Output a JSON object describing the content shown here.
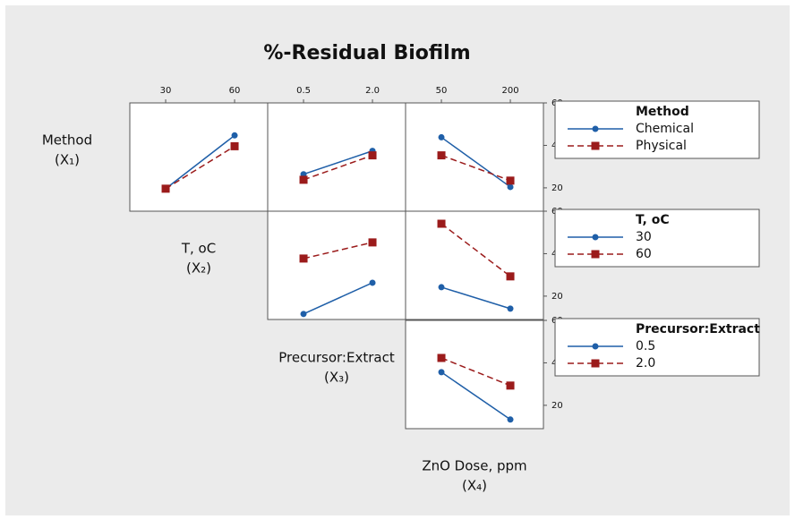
{
  "title": "%-Residual Biofilm",
  "factors": [
    {
      "name": "Method",
      "symbol": "(X₁)"
    },
    {
      "name": "T, oC",
      "symbol": "(X₂)"
    },
    {
      "name": "Precursor:Extract",
      "symbol": "(X₃)"
    },
    {
      "name": "ZnO Dose, ppm",
      "symbol": "(X₄)"
    }
  ],
  "chart_data": [
    {
      "type": "line",
      "categories": [
        "30",
        "60"
      ],
      "ylim": [
        9,
        60
      ],
      "series": [
        {
          "color": "#1f5fa8",
          "marker": "circle",
          "dashed": false,
          "values": [
            19.6,
            44.7
          ]
        },
        {
          "color": "#9b1b1b",
          "marker": "square",
          "dashed": true,
          "values": [
            19.6,
            39.6
          ]
        }
      ]
    },
    {
      "type": "line",
      "categories": [
        "0.5",
        "2.0"
      ],
      "ylim": [
        9,
        60
      ],
      "series": [
        {
          "color": "#1f5fa8",
          "marker": "circle",
          "dashed": false,
          "values": [
            26.4,
            37.4
          ]
        },
        {
          "color": "#9b1b1b",
          "marker": "square",
          "dashed": true,
          "values": [
            23.8,
            35.3
          ]
        }
      ]
    },
    {
      "type": "line",
      "categories": [
        "50",
        "200"
      ],
      "ylim": [
        9,
        60
      ],
      "yticks": [
        20,
        40,
        60
      ],
      "legend_title": "Method",
      "series": [
        {
          "name": "Chemical",
          "color": "#1f5fa8",
          "marker": "circle",
          "dashed": false,
          "values": [
            43.8,
            20.4
          ]
        },
        {
          "name": "Physical",
          "color": "#9b1b1b",
          "marker": "square",
          "dashed": true,
          "values": [
            35.3,
            23.4
          ]
        }
      ]
    },
    {
      "type": "line",
      "categories": [
        "0.5",
        "2.0"
      ],
      "ylim": [
        9,
        60
      ],
      "series": [
        {
          "color": "#1f5fa8",
          "marker": "circle",
          "dashed": false,
          "values": [
            11.6,
            26.3
          ]
        },
        {
          "color": "#9b1b1b",
          "marker": "square",
          "dashed": true,
          "values": [
            37.7,
            45.3
          ]
        }
      ]
    },
    {
      "type": "line",
      "categories": [
        "50",
        "200"
      ],
      "ylim": [
        9,
        60
      ],
      "yticks": [
        20,
        40,
        60
      ],
      "legend_title": "T, oC",
      "series": [
        {
          "name": "30",
          "color": "#1f5fa8",
          "marker": "circle",
          "dashed": false,
          "values": [
            24.2,
            14.1
          ]
        },
        {
          "name": "60",
          "color": "#9b1b1b",
          "marker": "square",
          "dashed": true,
          "values": [
            54.1,
            29.3
          ]
        }
      ]
    },
    {
      "type": "line",
      "categories": [
        "50",
        "200"
      ],
      "ylim": [
        9,
        60
      ],
      "yticks": [
        20,
        40,
        60
      ],
      "legend_title": "Precursor:Extract",
      "series": [
        {
          "name": "0.5",
          "color": "#1f5fa8",
          "marker": "circle",
          "dashed": false,
          "values": [
            35.6,
            13.3
          ]
        },
        {
          "name": "2.0",
          "color": "#9b1b1b",
          "marker": "square",
          "dashed": true,
          "values": [
            42.3,
            29.3
          ]
        }
      ]
    }
  ]
}
